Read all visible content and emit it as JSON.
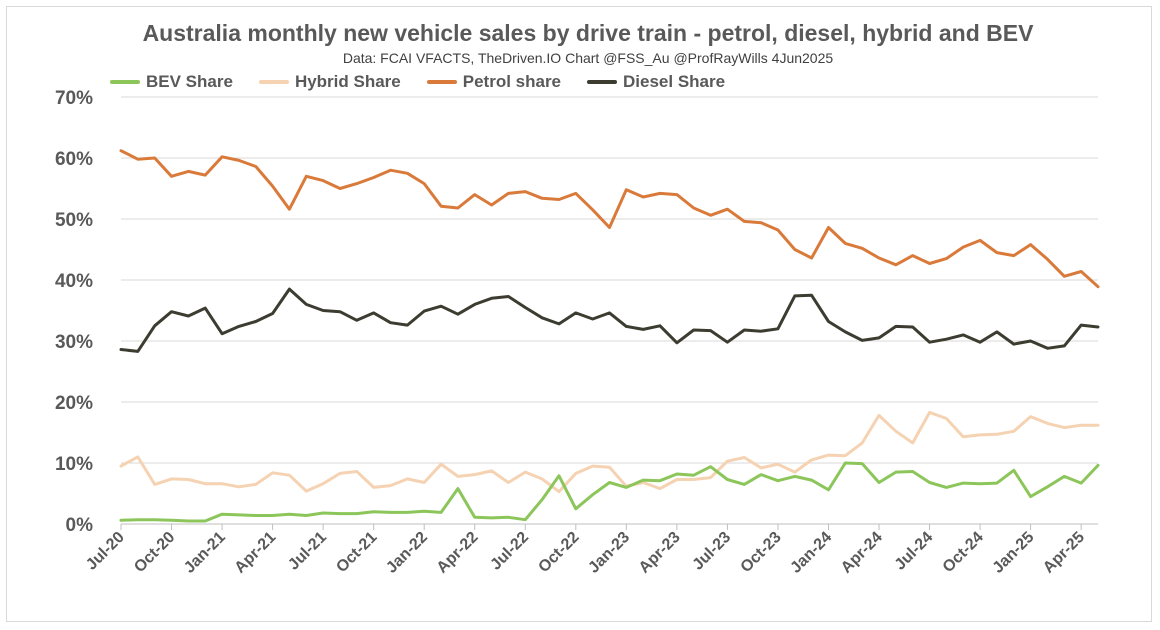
{
  "chart_data": {
    "type": "line",
    "title": "Australia monthly new vehicle sales by drive train - petrol, diesel, hybrid and BEV",
    "subtitle": "Data: FCAI VFACTS, TheDriven.IO  Chart @FSS_Au @ProfRayWills 4Jun2025",
    "ylim": [
      0,
      70
    ],
    "y_ticks": [
      "0%",
      "10%",
      "20%",
      "30%",
      "40%",
      "50%",
      "60%",
      "70%"
    ],
    "grid": true,
    "legend_position": "top-left",
    "x_tick_labels": [
      "Jul-20",
      "Oct-20",
      "Jan-21",
      "Apr-21",
      "Jul-21",
      "Oct-21",
      "Jan-22",
      "Apr-22",
      "Jul-22",
      "Oct-22",
      "Jan-23",
      "Apr-23",
      "Jul-23",
      "Oct-23",
      "Jan-24",
      "Apr-24",
      "Jul-24",
      "Oct-24",
      "Jan-25",
      "Apr-25"
    ],
    "x": [
      "Jul-20",
      "Aug-20",
      "Sep-20",
      "Oct-20",
      "Nov-20",
      "Dec-20",
      "Jan-21",
      "Feb-21",
      "Mar-21",
      "Apr-21",
      "May-21",
      "Jun-21",
      "Jul-21",
      "Aug-21",
      "Sep-21",
      "Oct-21",
      "Nov-21",
      "Dec-21",
      "Jan-22",
      "Feb-22",
      "Mar-22",
      "Apr-22",
      "May-22",
      "Jun-22",
      "Jul-22",
      "Aug-22",
      "Sep-22",
      "Oct-22",
      "Nov-22",
      "Dec-22",
      "Jan-23",
      "Feb-23",
      "Mar-23",
      "Apr-23",
      "May-23",
      "Jun-23",
      "Jul-23",
      "Aug-23",
      "Sep-23",
      "Oct-23",
      "Nov-23",
      "Dec-23",
      "Jan-24",
      "Feb-24",
      "Mar-24",
      "Apr-24",
      "May-24",
      "Jun-24",
      "Jul-24",
      "Aug-24",
      "Sep-24",
      "Oct-24",
      "Nov-24",
      "Dec-24",
      "Jan-25",
      "Feb-25",
      "Mar-25",
      "Apr-25",
      "May-25"
    ],
    "series": [
      {
        "name": "BEV Share",
        "color": "#8cc65a",
        "values": [
          0.6,
          0.7,
          0.7,
          0.6,
          0.5,
          0.5,
          1.6,
          1.5,
          1.4,
          1.4,
          1.6,
          1.4,
          1.8,
          1.7,
          1.7,
          2.0,
          1.9,
          1.9,
          2.1,
          1.9,
          5.8,
          1.1,
          1.0,
          1.1,
          0.7,
          4.0,
          7.9,
          2.5,
          4.8,
          6.8,
          6.0,
          7.2,
          7.1,
          8.2,
          8.0,
          9.4,
          7.3,
          6.5,
          8.1,
          7.1,
          7.8,
          7.2,
          5.6,
          10.0,
          9.9,
          6.8,
          8.5,
          8.6,
          6.8,
          6.0,
          6.7,
          6.6,
          6.7,
          8.8,
          4.5,
          6.1,
          7.8,
          6.7,
          9.6
        ]
      },
      {
        "name": "Hybrid Share",
        "color": "#f5d2b2",
        "values": [
          9.5,
          11.0,
          6.5,
          7.4,
          7.3,
          6.6,
          6.6,
          6.1,
          6.5,
          8.4,
          8.0,
          5.4,
          6.6,
          8.3,
          8.6,
          6.0,
          6.3,
          7.4,
          6.8,
          9.8,
          7.8,
          8.1,
          8.7,
          6.8,
          8.5,
          7.4,
          5.3,
          8.3,
          9.5,
          9.3,
          6.2,
          6.8,
          5.8,
          7.3,
          7.3,
          7.6,
          10.3,
          10.9,
          9.2,
          9.8,
          8.5,
          10.5,
          11.3,
          11.2,
          13.3,
          17.8,
          15.2,
          13.3,
          18.3,
          17.3,
          14.3,
          14.6,
          14.7,
          15.2,
          17.6,
          16.5,
          15.8,
          16.2,
          16.2
        ]
      },
      {
        "name": "Petrol share",
        "color": "#d97a3a",
        "values": [
          61.2,
          59.8,
          60.0,
          57.0,
          57.8,
          57.2,
          60.2,
          59.6,
          58.6,
          55.4,
          51.6,
          57.0,
          56.3,
          55.0,
          55.8,
          56.8,
          58.0,
          57.5,
          55.8,
          52.1,
          51.8,
          54.0,
          52.3,
          54.2,
          54.5,
          53.4,
          53.2,
          54.2,
          51.5,
          48.6,
          54.8,
          53.6,
          54.2,
          54.0,
          51.8,
          50.6,
          51.6,
          49.6,
          49.4,
          48.2,
          45.0,
          43.6,
          48.6,
          46.0,
          45.2,
          43.6,
          42.5,
          44.0,
          42.7,
          43.5,
          45.4,
          46.5,
          44.5,
          44.0,
          45.8,
          43.4,
          40.6,
          41.4,
          38.9
        ]
      },
      {
        "name": "Diesel Share",
        "color": "#3c3c30",
        "values": [
          28.6,
          28.3,
          32.5,
          34.8,
          34.1,
          35.4,
          31.2,
          32.4,
          33.2,
          34.5,
          38.5,
          36.0,
          35.0,
          34.8,
          33.4,
          34.6,
          33.0,
          32.6,
          34.9,
          35.7,
          34.4,
          36.0,
          37.0,
          37.3,
          35.5,
          33.8,
          32.8,
          34.6,
          33.6,
          34.6,
          32.4,
          31.9,
          32.5,
          29.7,
          31.8,
          31.7,
          29.8,
          31.8,
          31.6,
          32.0,
          37.4,
          37.5,
          33.2,
          31.5,
          30.1,
          30.5,
          32.4,
          32.3,
          29.8,
          30.3,
          31.0,
          29.8,
          31.5,
          29.5,
          30.0,
          28.8,
          29.2,
          32.6,
          32.3
        ]
      }
    ]
  }
}
